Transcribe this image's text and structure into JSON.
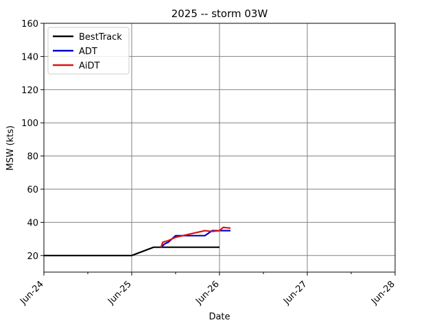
{
  "chart_data": {
    "type": "line",
    "title": "2025 -- storm 03W",
    "xlabel": "Date",
    "ylabel": "MSW (kts)",
    "xlim": [
      "2025-06-24",
      "2025-06-28"
    ],
    "ylim": [
      10,
      160
    ],
    "x_ticks": [
      "Jun-24",
      "Jun-25",
      "Jun-26",
      "Jun-27",
      "Jun-28"
    ],
    "y_ticks": [
      20,
      40,
      60,
      80,
      100,
      120,
      140,
      160
    ],
    "grid": true,
    "legend_position": "top-left",
    "series": [
      {
        "name": "BestTrack",
        "color": "#000000",
        "points": [
          [
            "2025-06-24T00:00",
            20
          ],
          [
            "2025-06-25T00:00",
            20
          ],
          [
            "2025-06-25T06:00",
            25
          ],
          [
            "2025-06-26T00:00",
            25
          ]
        ]
      },
      {
        "name": "ADT",
        "color": "#0000cc",
        "points": [
          [
            "2025-06-25T08:00",
            25
          ],
          [
            "2025-06-25T09:00",
            27
          ],
          [
            "2025-06-25T10:00",
            28
          ],
          [
            "2025-06-25T11:00",
            30
          ],
          [
            "2025-06-25T12:00",
            32
          ],
          [
            "2025-06-25T20:00",
            32
          ],
          [
            "2025-06-25T22:00",
            35
          ],
          [
            "2025-06-26T03:00",
            35
          ]
        ]
      },
      {
        "name": "AiDT",
        "color": "#dd1111",
        "points": [
          [
            "2025-06-25T08:00",
            25
          ],
          [
            "2025-06-25T08:30",
            28
          ],
          [
            "2025-06-25T10:00",
            29
          ],
          [
            "2025-06-25T11:00",
            30
          ],
          [
            "2025-06-25T12:00",
            31
          ],
          [
            "2025-06-25T14:00",
            32
          ],
          [
            "2025-06-25T16:00",
            33
          ],
          [
            "2025-06-25T18:00",
            34
          ],
          [
            "2025-06-25T20:00",
            35
          ],
          [
            "2025-06-25T22:00",
            34.5
          ],
          [
            "2025-06-26T00:00",
            35
          ],
          [
            "2025-06-26T01:00",
            37
          ],
          [
            "2025-06-26T03:00",
            36.5
          ]
        ]
      }
    ]
  }
}
